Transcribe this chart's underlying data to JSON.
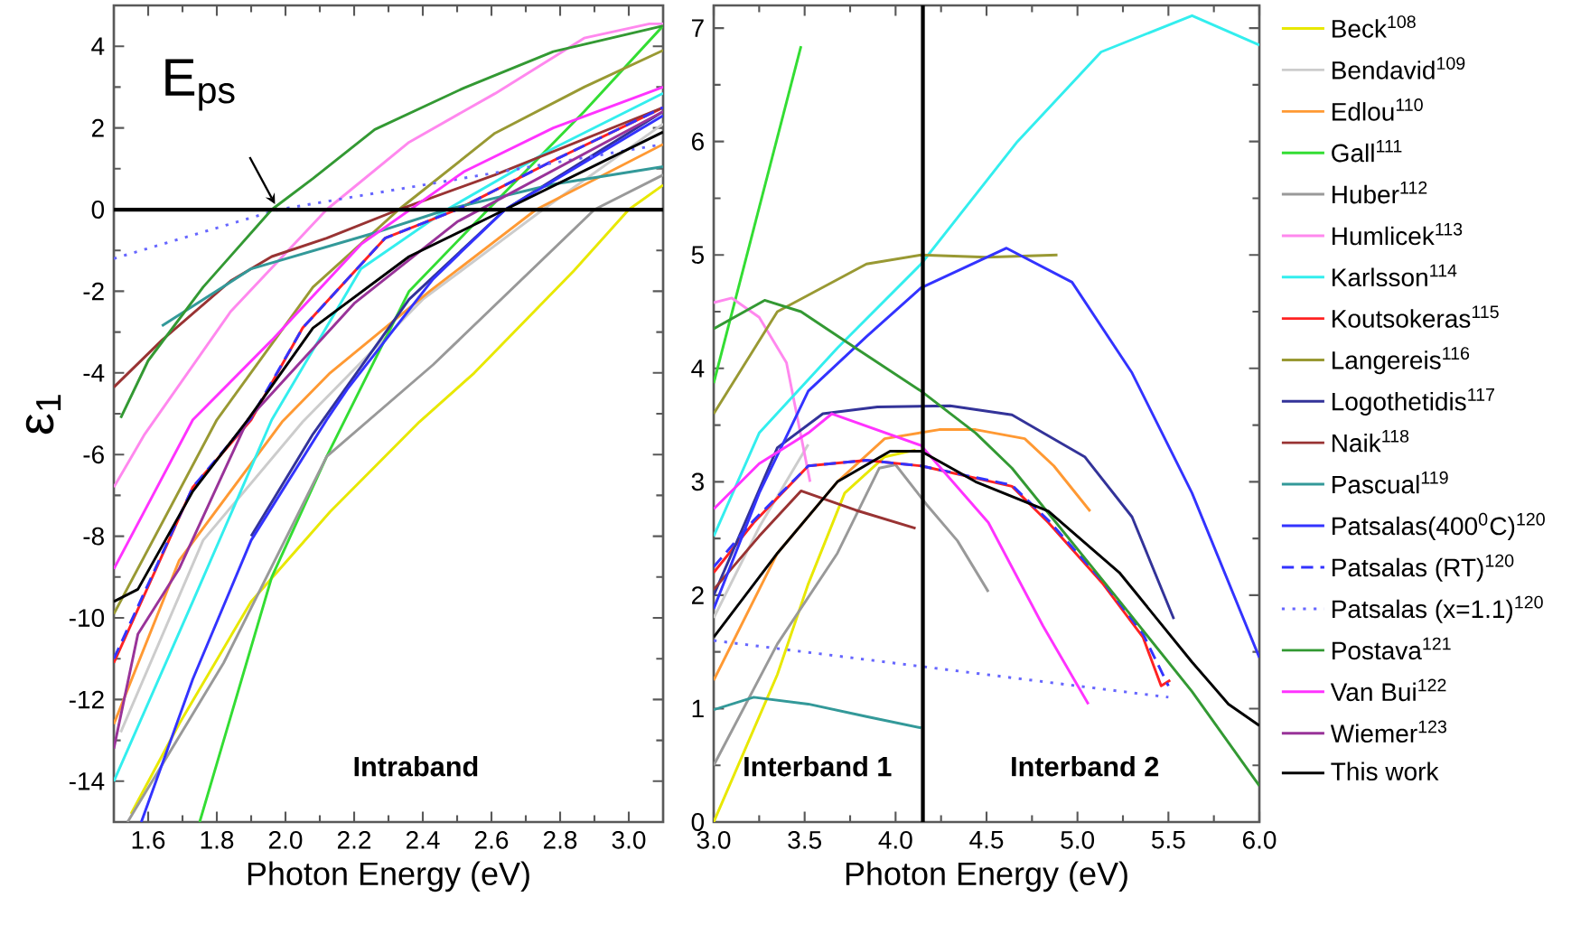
{
  "chart_data": [
    {
      "type": "line",
      "xlabel": "Photon Energy (eV)",
      "ylabel": "ε$_{1}$",
      "xlim": [
        1.5,
        3.1
      ],
      "ylim": [
        -15,
        5
      ],
      "xticks": [
        1.6,
        1.8,
        {
          "value": 2,
          "label": "2.0"
        },
        2.2,
        2.4,
        2.6,
        2.8,
        {
          "value": 3,
          "label": "3.0"
        }
      ],
      "yticks": [
        -14,
        -12,
        -10,
        -8,
        -6,
        -4,
        -2,
        0,
        2,
        4
      ],
      "legend": "right",
      "ref_lines": [
        {
          "axis": "y",
          "value": 0,
          "color": "#000000"
        }
      ],
      "annotations": [
        {
          "text": "E$_{ps}$",
          "x": 1.98,
          "y": 0
        },
        "Intraband"
      ],
      "series": [
        {
          "name": "Beck$^{108}$",
          "color": "#e8e800",
          "x": [
            1.55,
            1.69,
            1.9,
            2.13,
            2.39,
            2.55,
            2.84,
            3.0,
            3.1
          ],
          "values": [
            -14.8,
            -12.6,
            -9.6,
            -7.4,
            -5.2,
            -4.0,
            -1.5,
            0,
            0.6
          ]
        },
        {
          "name": "Bendavid$^{109}$",
          "color": "#cccccc",
          "x": [
            1.52,
            1.76,
            2.05,
            2.4,
            2.75,
            3.1
          ],
          "values": [
            -12.8,
            -8.1,
            -5.2,
            -2.2,
            0,
            2.1
          ]
        },
        {
          "name": "Edlou$^{110}$",
          "color": "#ff9933",
          "x": [
            1.5,
            1.69,
            1.99,
            2.13,
            2.42,
            2.73,
            3.1
          ],
          "values": [
            -12.6,
            -8.6,
            -5.2,
            -4.0,
            -2.0,
            0,
            1.6
          ]
        },
        {
          "name": "Gall$^{111}$",
          "color": "#33dd33",
          "x": [
            1.75,
            1.96,
            2.12,
            2.36,
            2.59,
            2.87,
            3.1
          ],
          "values": [
            -15,
            -9.0,
            -6.05,
            -2.0,
            0,
            2.4,
            4.5
          ]
        },
        {
          "name": "Huber$^{112}$",
          "color": "#999999",
          "x": [
            1.54,
            1.82,
            2.12,
            2.43,
            2.9,
            3.1
          ],
          "values": [
            -15,
            -11.1,
            -6.05,
            -3.8,
            0,
            0.85
          ]
        },
        {
          "name": "Humlicek$^{113}$",
          "color": "#ff88ee",
          "x": [
            1.5,
            1.59,
            1.84,
            2.12,
            2.36,
            2.61,
            2.87,
            3.06,
            3.1
          ],
          "values": [
            -6.8,
            -5.5,
            -2.5,
            0,
            1.65,
            2.84,
            4.2,
            4.55,
            4.55
          ]
        },
        {
          "name": "Karlsson$^{114}$",
          "color": "#33eeee",
          "x": [
            1.5,
            1.73,
            1.96,
            2.22,
            2.47,
            2.78,
            3.1
          ],
          "values": [
            -14.0,
            -9.6,
            -5.15,
            -1.45,
            0,
            1.5,
            2.85
          ]
        },
        {
          "name": "Koutsokeras$^{115}$",
          "color": "#ff2222",
          "x": [
            1.5,
            1.73,
            1.9,
            2.05,
            2.29,
            2.5,
            2.78,
            3.1
          ],
          "values": [
            -11.1,
            -6.8,
            -5.15,
            -2.9,
            -0.7,
            0,
            1.2,
            2.5
          ]
        },
        {
          "name": "Langereis$^{116}$",
          "color": "#999933",
          "x": [
            1.5,
            1.8,
            2.08,
            2.33,
            2.61,
            2.87,
            3.1
          ],
          "values": [
            -9.9,
            -5.15,
            -1.9,
            0,
            1.87,
            3.0,
            3.9
          ]
        },
        {
          "name": "Logothetidis$^{117}$",
          "color": "#333399",
          "x": [
            1.9,
            2.08,
            2.36,
            2.64,
            3.1
          ],
          "values": [
            -8.0,
            -5.5,
            -2.2,
            0,
            2.4
          ]
        },
        {
          "name": "Naik$^{118}$",
          "color": "#993333",
          "x": [
            1.5,
            1.64,
            1.84,
            1.96,
            2.12,
            2.33,
            2.61,
            3.1
          ],
          "values": [
            -4.35,
            -3.2,
            -1.75,
            -1.15,
            -0.7,
            0,
            0.85,
            2.5
          ]
        },
        {
          "name": "Pascual$^{119}$",
          "color": "#339999",
          "x": [
            1.64,
            1.9,
            2.26,
            2.47,
            2.78,
            3.1
          ],
          "values": [
            -2.85,
            -1.45,
            -0.57,
            0,
            0.62,
            1.05
          ]
        },
        {
          "name": "Patsalas(400$^{0}$C)$^{120}$",
          "color": "#3333ff",
          "x": [
            1.58,
            1.73,
            1.9,
            2.12,
            2.18,
            2.43,
            2.64,
            3.1
          ],
          "values": [
            -15,
            -11.5,
            -8.1,
            -5.15,
            -4.4,
            -1.7,
            0,
            2.3
          ]
        },
        {
          "name": "Patsalas (RT)$^{120}$",
          "color": "#3333ff",
          "line_style": "dashed",
          "x": [
            1.5,
            1.73,
            1.9,
            2.05,
            2.29,
            2.5,
            2.78,
            3.1
          ],
          "values": [
            -11.0,
            -6.8,
            -5.1,
            -2.9,
            -0.7,
            0,
            1.2,
            2.5
          ]
        },
        {
          "name": "Patsalas (x=1.1)$^{120}$",
          "color": "#6666ff",
          "line_style": "dotted",
          "x": [
            1.5,
            1.98,
            3.1
          ],
          "values": [
            -1.2,
            0,
            1.6
          ]
        },
        {
          "name": "Postava$^{121}$",
          "color": "#339933",
          "x": [
            1.52,
            1.6,
            1.76,
            1.96,
            2.08,
            2.26,
            2.52,
            2.78,
            3.1
          ],
          "values": [
            -5.1,
            -3.7,
            -1.9,
            0,
            0.76,
            1.96,
            2.98,
            3.87,
            4.5
          ]
        },
        {
          "name": "Van Bui$^{122}$",
          "color": "#ff33ff",
          "x": [
            1.5,
            1.73,
            1.96,
            2.22,
            2.52,
            2.78,
            3.1
          ],
          "values": [
            -8.8,
            -5.15,
            -3.2,
            -0.85,
            0.93,
            2.0,
            3.0
          ]
        },
        {
          "name": "Wiemer$^{123}$",
          "color": "#993399",
          "x": [
            1.5,
            1.57,
            1.69,
            1.89,
            2.2,
            2.5,
            3.1
          ],
          "values": [
            -13.2,
            -10.4,
            -8.8,
            -5.15,
            -2.3,
            -0.3,
            2.4
          ]
        },
        {
          "name": "This work",
          "color": "#000000",
          "x": [
            1.5,
            1.57,
            1.73,
            1.89,
            2.08,
            2.36,
            2.64,
            3.1
          ],
          "values": [
            -9.6,
            -9.3,
            -6.9,
            -5.15,
            -2.9,
            -1.15,
            0,
            1.9
          ]
        }
      ]
    },
    {
      "type": "line",
      "xlabel": "Photon Energy (eV)",
      "xlim": [
        3,
        6
      ],
      "ylim": [
        0,
        7.2
      ],
      "xticks": [
        {
          "value": 3,
          "label": "3.0"
        },
        3.5,
        {
          "value": 4,
          "label": "4.0"
        },
        4.5,
        {
          "value": 5,
          "label": "5.0"
        },
        5.5,
        {
          "value": 6,
          "label": "6.0"
        }
      ],
      "yticks": [
        0,
        1,
        2,
        3,
        4,
        5,
        6,
        7
      ],
      "ref_lines": [
        {
          "axis": "x",
          "value": 4.15,
          "color": "#000000"
        }
      ],
      "annotations": [
        "Interband 1",
        "Interband 2"
      ],
      "series": [
        {
          "color": "#e8e800",
          "x": [
            3.0,
            3.35,
            3.52,
            3.72,
            3.94,
            4.11
          ],
          "values": [
            0,
            1.3,
            2.1,
            2.9,
            3.22,
            3.28
          ]
        },
        {
          "color": "#cccccc",
          "x": [
            3.0,
            3.25,
            3.52
          ],
          "values": [
            1.8,
            2.6,
            3.33
          ]
        },
        {
          "color": "#ff9933",
          "x": [
            3.0,
            3.35,
            3.68,
            3.94,
            4.24,
            4.44,
            4.71,
            4.87,
            5.07
          ],
          "values": [
            1.25,
            2.37,
            3.0,
            3.38,
            3.46,
            3.46,
            3.38,
            3.14,
            2.74
          ]
        },
        {
          "color": "#33dd33",
          "x": [
            3.0,
            3.48
          ],
          "values": [
            3.87,
            6.84
          ]
        },
        {
          "color": "#999999",
          "x": [
            3.0,
            3.35,
            3.68,
            3.91,
            4.0,
            4.17,
            4.34,
            4.51
          ],
          "values": [
            0.5,
            1.57,
            2.37,
            3.12,
            3.15,
            2.8,
            2.48,
            2.03
          ]
        },
        {
          "color": "#ff88ee",
          "x": [
            3.0,
            3.1,
            3.25,
            3.4,
            3.53
          ],
          "values": [
            4.58,
            4.62,
            4.45,
            4.05,
            3.0
          ]
        },
        {
          "color": "#33eeee",
          "x": [
            3.0,
            3.25,
            3.68,
            4.14,
            4.67,
            5.13,
            5.63,
            6.0
          ],
          "values": [
            2.52,
            3.43,
            4.18,
            4.92,
            6.0,
            6.79,
            7.11,
            6.85
          ]
        },
        {
          "color": "#ff2222",
          "x": [
            3.0,
            3.22,
            3.52,
            3.84,
            4.14,
            4.64,
            4.84,
            5.14,
            5.36,
            5.46,
            5.51
          ],
          "values": [
            2.2,
            2.64,
            3.14,
            3.19,
            3.14,
            2.96,
            2.64,
            2.1,
            1.63,
            1.2,
            1.25
          ]
        },
        {
          "color": "#999933",
          "x": [
            3.0,
            3.35,
            3.84,
            4.14,
            4.5,
            4.89
          ],
          "values": [
            3.6,
            4.5,
            4.92,
            5.0,
            4.98,
            5.0
          ]
        },
        {
          "color": "#333399",
          "x": [
            3.0,
            3.35,
            3.6,
            3.9,
            4.3,
            4.64,
            5.04,
            5.3,
            5.53
          ],
          "values": [
            2.0,
            3.3,
            3.6,
            3.66,
            3.67,
            3.59,
            3.22,
            2.69,
            1.79
          ]
        },
        {
          "color": "#993333",
          "x": [
            3.0,
            3.25,
            3.48,
            3.78,
            4.11
          ],
          "values": [
            2.05,
            2.52,
            2.92,
            2.75,
            2.59
          ]
        },
        {
          "color": "#339999",
          "x": [
            3.0,
            3.22,
            3.52,
            3.84,
            4.14
          ],
          "values": [
            0.99,
            1.1,
            1.04,
            0.93,
            0.83
          ]
        },
        {
          "color": "#3333ff",
          "x": [
            3.0,
            3.25,
            3.52,
            3.84,
            4.14,
            4.61,
            4.97,
            5.3,
            5.63,
            6.0
          ],
          "values": [
            1.88,
            2.9,
            3.8,
            4.28,
            4.71,
            5.06,
            4.76,
            3.96,
            2.9,
            1.45
          ]
        },
        {
          "color": "#3333ff",
          "line_style": "dashed",
          "x": [
            3.0,
            3.22,
            3.52,
            3.84,
            4.14,
            4.64,
            4.84,
            5.14,
            5.36,
            5.5
          ],
          "values": [
            2.25,
            2.66,
            3.14,
            3.19,
            3.14,
            2.97,
            2.66,
            2.12,
            1.66,
            1.2
          ]
        },
        {
          "color": "#6666ff",
          "line_style": "dotted",
          "x": [
            3.0,
            4.15,
            5.0,
            5.5
          ],
          "values": [
            1.6,
            1.37,
            1.2,
            1.1
          ]
        },
        {
          "color": "#339933",
          "x": [
            3.0,
            3.28,
            3.48,
            3.78,
            4.14,
            4.44,
            4.64,
            5.23,
            5.63,
            6.0
          ],
          "values": [
            4.35,
            4.6,
            4.5,
            4.18,
            3.8,
            3.43,
            3.12,
            1.95,
            1.15,
            0.32
          ]
        },
        {
          "color": "#ff33ff",
          "x": [
            3.0,
            3.25,
            3.52,
            3.65,
            4.14,
            4.51,
            4.81,
            5.06
          ],
          "values": [
            2.76,
            3.16,
            3.43,
            3.6,
            3.32,
            2.64,
            1.73,
            1.04
          ]
        },
        {
          "color": "#000000",
          "x": [
            3.0,
            3.35,
            3.68,
            3.97,
            4.14,
            4.44,
            4.84,
            5.23,
            5.63,
            5.83,
            6.0
          ],
          "values": [
            1.63,
            2.37,
            3.0,
            3.27,
            3.27,
            3.0,
            2.74,
            2.2,
            1.41,
            1.04,
            0.85
          ]
        }
      ]
    }
  ]
}
